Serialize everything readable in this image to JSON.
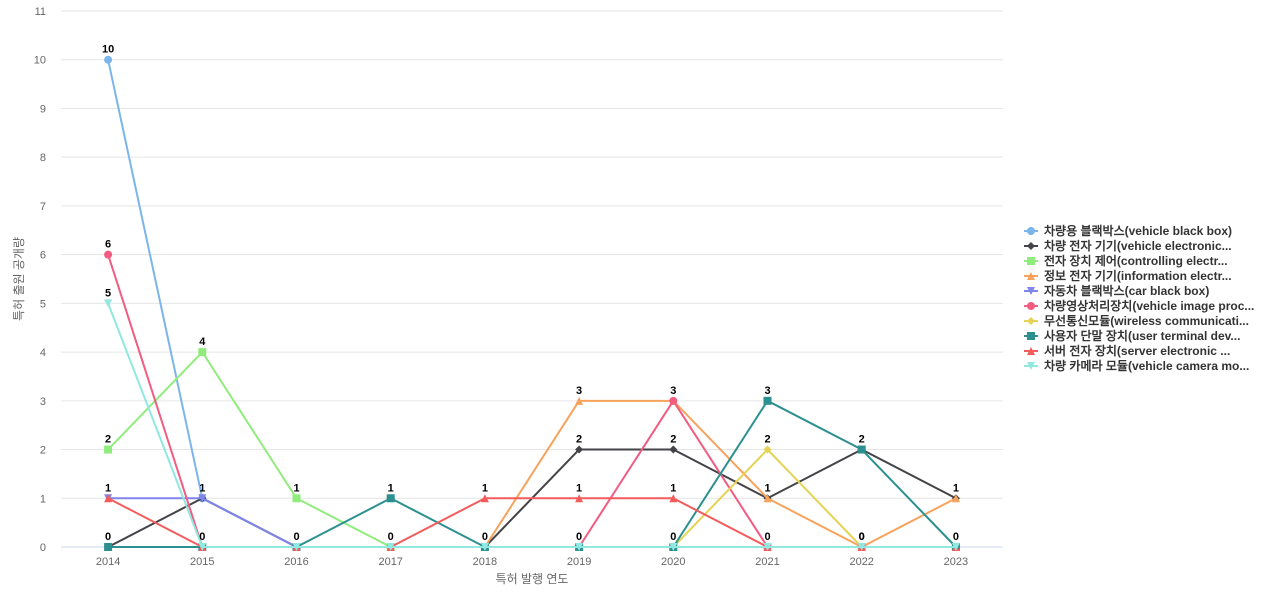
{
  "chart_data": {
    "type": "line",
    "xlabel": "특허 발행 연도",
    "ylabel": "특허 출원 공개량",
    "ylim": [
      0,
      11
    ],
    "yticks": [
      0,
      1,
      2,
      3,
      4,
      5,
      6,
      7,
      8,
      9,
      10,
      11
    ],
    "categories": [
      "2014",
      "2015",
      "2016",
      "2017",
      "2018",
      "2019",
      "2020",
      "2021",
      "2022",
      "2023"
    ],
    "grid": true,
    "legend_position": "right",
    "series": [
      {
        "name": "차량용 블랙박스(vehicle black box)",
        "color": "#7cb5ec",
        "marker": "circle",
        "values": [
          10,
          1,
          0,
          0,
          0,
          0,
          0,
          0,
          0,
          0
        ],
        "labels": [
          10,
          1,
          null,
          null,
          null,
          null,
          null,
          null,
          null,
          null
        ]
      },
      {
        "name": "차량 전자 기기(vehicle electronic...",
        "color": "#434348",
        "marker": "diamond",
        "values": [
          0,
          1,
          0,
          0,
          0,
          2,
          2,
          1,
          2,
          1
        ],
        "labels": [
          0,
          null,
          0,
          null,
          null,
          2,
          2,
          1,
          2,
          1
        ]
      },
      {
        "name": "전자 장치 제어(controlling electr...",
        "color": "#90ed7d",
        "marker": "square",
        "values": [
          2,
          4,
          1,
          0,
          0,
          0,
          0,
          0,
          0,
          0
        ],
        "labels": [
          2,
          4,
          1,
          null,
          null,
          null,
          null,
          null,
          null,
          null
        ]
      },
      {
        "name": "정보 전자 기기(information electr...",
        "color": "#f7a35c",
        "marker": "triangle",
        "values": [
          0,
          0,
          0,
          0,
          0,
          3,
          3,
          1,
          0,
          1
        ],
        "labels": [
          null,
          null,
          null,
          null,
          null,
          3,
          3,
          null,
          0,
          null
        ]
      },
      {
        "name": "자동차 블랙박스(car black box)",
        "color": "#8085e9",
        "marker": "triangle-down",
        "values": [
          1,
          1,
          0,
          0,
          0,
          0,
          0,
          0,
          0,
          0
        ],
        "labels": [
          1,
          null,
          null,
          null,
          null,
          null,
          null,
          null,
          null,
          null
        ]
      },
      {
        "name": "차량영상처리장치(vehicle image proc...",
        "color": "#f15c80",
        "marker": "circle",
        "values": [
          6,
          0,
          0,
          0,
          0,
          0,
          3,
          0,
          0,
          0
        ],
        "labels": [
          6,
          null,
          null,
          null,
          null,
          0,
          null,
          null,
          null,
          null
        ]
      },
      {
        "name": "무선통신모듈(wireless communicati...",
        "color": "#e4d354",
        "marker": "diamond",
        "values": [
          0,
          0,
          0,
          0,
          0,
          0,
          0,
          2,
          0,
          0
        ],
        "labels": [
          null,
          null,
          null,
          null,
          null,
          null,
          null,
          2,
          null,
          null
        ]
      },
      {
        "name": "사용자 단말 장치(user terminal dev...",
        "color": "#2b908f",
        "marker": "square",
        "values": [
          0,
          0,
          0,
          1,
          0,
          0,
          0,
          3,
          2,
          0
        ],
        "labels": [
          null,
          null,
          null,
          1,
          0,
          null,
          0,
          3,
          null,
          0
        ]
      },
      {
        "name": "서버 전자 장치(server electronic ...",
        "color": "#f45b5b",
        "marker": "triangle",
        "values": [
          1,
          0,
          0,
          0,
          1,
          1,
          1,
          0,
          0,
          0
        ],
        "labels": [
          null,
          0,
          null,
          0,
          1,
          1,
          1,
          0,
          0,
          null
        ]
      },
      {
        "name": "차량 카메라 모듈(vehicle camera mo...",
        "color": "#91e8e1",
        "marker": "triangle-down",
        "values": [
          5,
          0,
          0,
          0,
          0,
          0,
          0,
          0,
          0,
          0
        ],
        "labels": [
          5,
          null,
          null,
          null,
          null,
          null,
          null,
          null,
          null,
          null
        ]
      }
    ]
  }
}
